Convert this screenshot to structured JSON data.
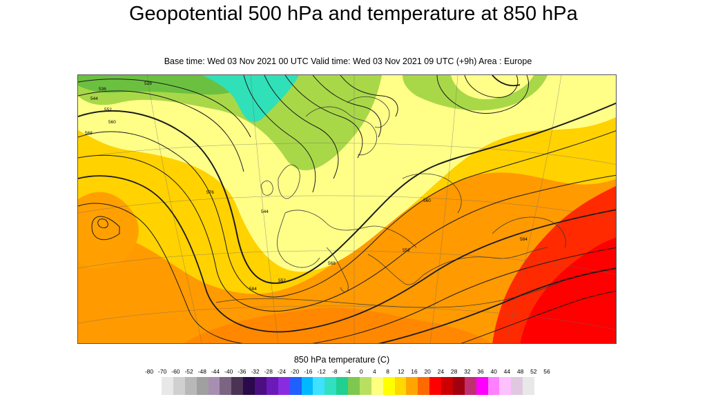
{
  "header": {
    "title": "Geopotential 500 hPa and temperature at 850 hPa",
    "subtitle": "Base time: Wed 03 Nov 2021 00 UTC Valid time: Wed 03 Nov 2021 09 UTC (+9h) Area : Europe"
  },
  "map": {
    "area": "Europe",
    "contour_labels": [
      "536",
      "544",
      "552",
      "560",
      "568",
      "576",
      "528",
      "584",
      "552",
      "560",
      "544",
      "568",
      "552",
      "584"
    ]
  },
  "legend": {
    "title": "850 hPa temperature (C)",
    "ticks": [
      "-80",
      "-70",
      "-60",
      "-52",
      "-48",
      "-44",
      "-40",
      "-36",
      "-32",
      "-28",
      "-24",
      "-20",
      "-16",
      "-12",
      "-8",
      "-4",
      "0",
      "4",
      "8",
      "12",
      "16",
      "20",
      "24",
      "28",
      "32",
      "36",
      "40",
      "44",
      "48",
      "52",
      "56"
    ],
    "colors": [
      "#e8e8e8",
      "#d0d0d0",
      "#b8b8b8",
      "#a0a0a0",
      "#a68fb0",
      "#7b6583",
      "#4a3355",
      "#2a0a4a",
      "#4b0f82",
      "#6a1ab8",
      "#8a2be2",
      "#2060ff",
      "#00b8ff",
      "#40e0ff",
      "#30e0c0",
      "#20d090",
      "#7ec850",
      "#b8e060",
      "#ffff80",
      "#ffff00",
      "#ffd800",
      "#ffa500",
      "#ff6a00",
      "#ff0000",
      "#cc0000",
      "#a00010",
      "#c03070",
      "#ff00ff",
      "#ff80ff",
      "#ffc0ff",
      "#e0c8e0",
      "#e8e8e8"
    ]
  }
}
